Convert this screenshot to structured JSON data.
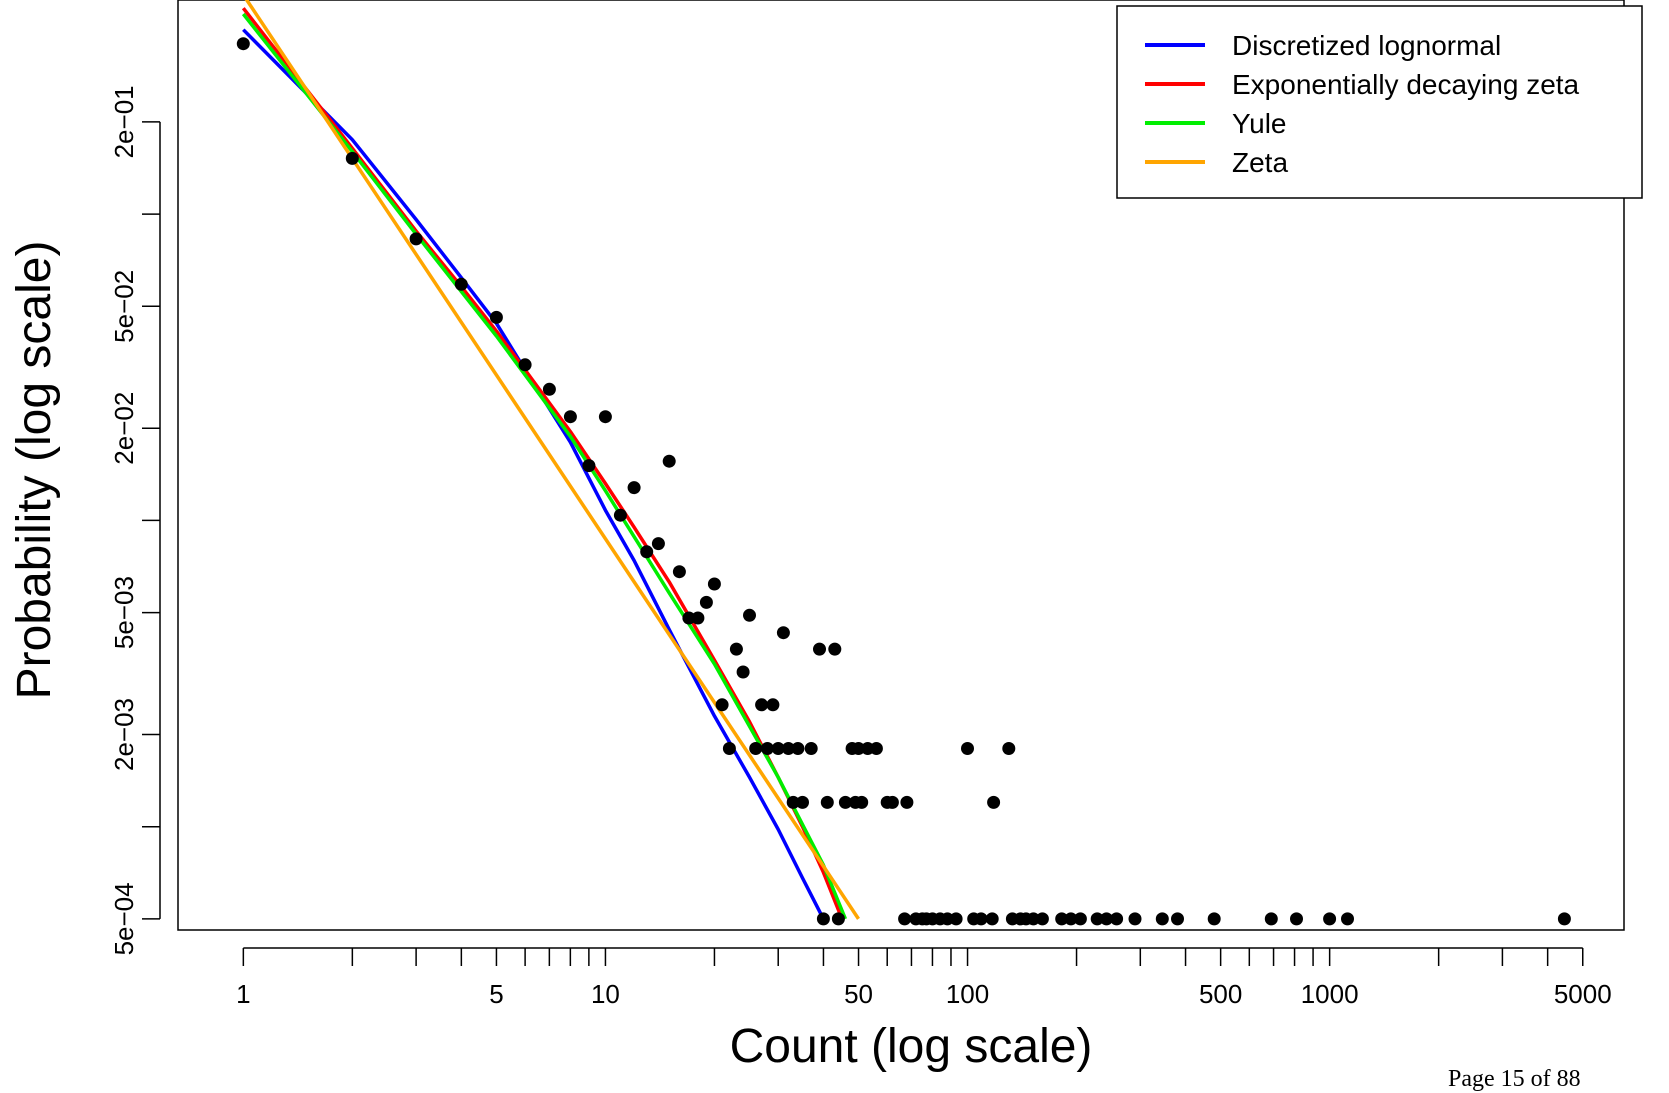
{
  "chart_data": {
    "type": "scatter",
    "title": "",
    "xlabel": "Count (log scale)",
    "ylabel": "Probability (log scale)",
    "xscale": "log",
    "yscale": "log",
    "xlim": [
      0.66,
      6500
    ],
    "ylim": [
      0.00046,
      0.5
    ],
    "x_ticks": [
      {
        "value": 1,
        "label": "1"
      },
      {
        "value": 5,
        "label": "5"
      },
      {
        "value": 10,
        "label": "10"
      },
      {
        "value": 50,
        "label": "50"
      },
      {
        "value": 100,
        "label": "100"
      },
      {
        "value": 500,
        "label": "500"
      },
      {
        "value": 1000,
        "label": "1000"
      },
      {
        "value": 5000,
        "label": "5000"
      }
    ],
    "x_minor_ticks": [
      2,
      3,
      4,
      6,
      7,
      8,
      9,
      20,
      30,
      40,
      60,
      70,
      80,
      90,
      200,
      300,
      400,
      600,
      700,
      800,
      900,
      2000,
      3000,
      4000
    ],
    "y_ticks": [
      {
        "value": 0.0005,
        "label": "5e−04"
      },
      {
        "value": 0.002,
        "label": "2e−03"
      },
      {
        "value": 0.005,
        "label": "5e−03"
      },
      {
        "value": 0.02,
        "label": "2e−02"
      },
      {
        "value": 0.05,
        "label": "5e−02"
      },
      {
        "value": 0.2,
        "label": "2e−01"
      }
    ],
    "y_minor_ticks": [
      0.001,
      0.01,
      0.1
    ],
    "legend": {
      "position": "top-right",
      "entries": [
        {
          "name": "Discretized lognormal",
          "color": "#0000ff"
        },
        {
          "name": "Exponentially decaying zeta",
          "color": "#ff0000"
        },
        {
          "name": "Yule",
          "color": "#00ee00"
        },
        {
          "name": "Zeta",
          "color": "#ffa500"
        }
      ]
    },
    "points": {
      "color": "#000000",
      "data": [
        [
          1,
          0.36
        ],
        [
          2,
          0.152
        ],
        [
          3,
          0.083
        ],
        [
          4,
          0.059
        ],
        [
          5,
          0.046
        ],
        [
          6,
          0.0322
        ],
        [
          7,
          0.0268
        ],
        [
          8,
          0.0218
        ],
        [
          9,
          0.0151
        ],
        [
          10,
          0.0218
        ],
        [
          11,
          0.0104
        ],
        [
          12,
          0.0128
        ],
        [
          13,
          0.0079
        ],
        [
          14,
          0.0084
        ],
        [
          15,
          0.0156
        ],
        [
          16,
          0.0068
        ],
        [
          17,
          0.0048
        ],
        [
          18,
          0.0048
        ],
        [
          19,
          0.0054
        ],
        [
          20,
          0.0062
        ],
        [
          21,
          0.0025
        ],
        [
          22,
          0.0018
        ],
        [
          23,
          0.0038
        ],
        [
          24,
          0.0032
        ],
        [
          25,
          0.0049
        ],
        [
          26,
          0.0018
        ],
        [
          27,
          0.0025
        ],
        [
          28,
          0.0018
        ],
        [
          29,
          0.0025
        ],
        [
          30,
          0.0018
        ],
        [
          31,
          0.0043
        ],
        [
          32,
          0.0018
        ],
        [
          33,
          0.0012
        ],
        [
          34,
          0.0018
        ],
        [
          35,
          0.0012
        ],
        [
          37,
          0.0018
        ],
        [
          39,
          0.0038
        ],
        [
          40,
          0.0005
        ],
        [
          41,
          0.0012
        ],
        [
          43,
          0.0038
        ],
        [
          44,
          0.0005
        ],
        [
          46,
          0.0012
        ],
        [
          48,
          0.0018
        ],
        [
          49,
          0.0012
        ],
        [
          50,
          0.0018
        ],
        [
          51,
          0.0012
        ],
        [
          53,
          0.0018
        ],
        [
          56,
          0.0018
        ],
        [
          60,
          0.0012
        ],
        [
          62,
          0.0012
        ],
        [
          67,
          0.0005
        ],
        [
          68,
          0.0012
        ],
        [
          72,
          0.0005
        ],
        [
          75,
          0.0005
        ],
        [
          77,
          0.0005
        ],
        [
          80,
          0.0005
        ],
        [
          84,
          0.0005
        ],
        [
          88,
          0.0005
        ],
        [
          93,
          0.0005
        ],
        [
          100,
          0.0018
        ],
        [
          104,
          0.0005
        ],
        [
          109,
          0.0005
        ],
        [
          117,
          0.0005
        ],
        [
          118,
          0.0012
        ],
        [
          130,
          0.0018
        ],
        [
          133,
          0.0005
        ],
        [
          140,
          0.0005
        ],
        [
          145,
          0.0005
        ],
        [
          152,
          0.0005
        ],
        [
          161,
          0.0005
        ],
        [
          182,
          0.0005
        ],
        [
          193,
          0.0005
        ],
        [
          205,
          0.0005
        ],
        [
          228,
          0.0005
        ],
        [
          242,
          0.0005
        ],
        [
          258,
          0.0005
        ],
        [
          290,
          0.0005
        ],
        [
          345,
          0.0005
        ],
        [
          380,
          0.0005
        ],
        [
          480,
          0.0005
        ],
        [
          690,
          0.0005
        ],
        [
          810,
          0.0005
        ],
        [
          1000,
          0.0005
        ],
        [
          1120,
          0.0005
        ],
        [
          4450,
          0.0005
        ]
      ]
    },
    "series": [
      {
        "name": "Discretized lognormal",
        "color": "#0000ff",
        "x": [
          1,
          2,
          3,
          4,
          5,
          6,
          8,
          10,
          12,
          15,
          20,
          25,
          30,
          35,
          40
        ],
        "y": [
          0.4,
          0.175,
          0.096,
          0.062,
          0.044,
          0.031,
          0.018,
          0.0108,
          0.0074,
          0.0044,
          0.0023,
          0.00145,
          0.00098,
          0.00068,
          0.0005
        ]
      },
      {
        "name": "Exponentially decaying zeta",
        "color": "#ff0000",
        "x": [
          1,
          2,
          3,
          4,
          5,
          6,
          8,
          10,
          12,
          15,
          20,
          25,
          30,
          35,
          40,
          45
        ],
        "y": [
          0.47,
          0.164,
          0.088,
          0.058,
          0.0415,
          0.031,
          0.0195,
          0.0132,
          0.0095,
          0.0063,
          0.0035,
          0.0022,
          0.00145,
          0.001,
          0.00071,
          0.0005
        ]
      },
      {
        "name": "Yule",
        "color": "#00ee00",
        "x": [
          1,
          2,
          3,
          5,
          8,
          10,
          15,
          20,
          30,
          40,
          46
        ],
        "y": [
          0.45,
          0.16,
          0.086,
          0.04,
          0.0188,
          0.0125,
          0.0058,
          0.0034,
          0.00145,
          0.00075,
          0.0005
        ]
      },
      {
        "name": "Zeta",
        "color": "#ffa500",
        "x": [
          1,
          50
        ],
        "y": [
          0.52,
          0.0005
        ]
      }
    ]
  },
  "footer": {
    "page_text": "Page 15 of 88"
  }
}
